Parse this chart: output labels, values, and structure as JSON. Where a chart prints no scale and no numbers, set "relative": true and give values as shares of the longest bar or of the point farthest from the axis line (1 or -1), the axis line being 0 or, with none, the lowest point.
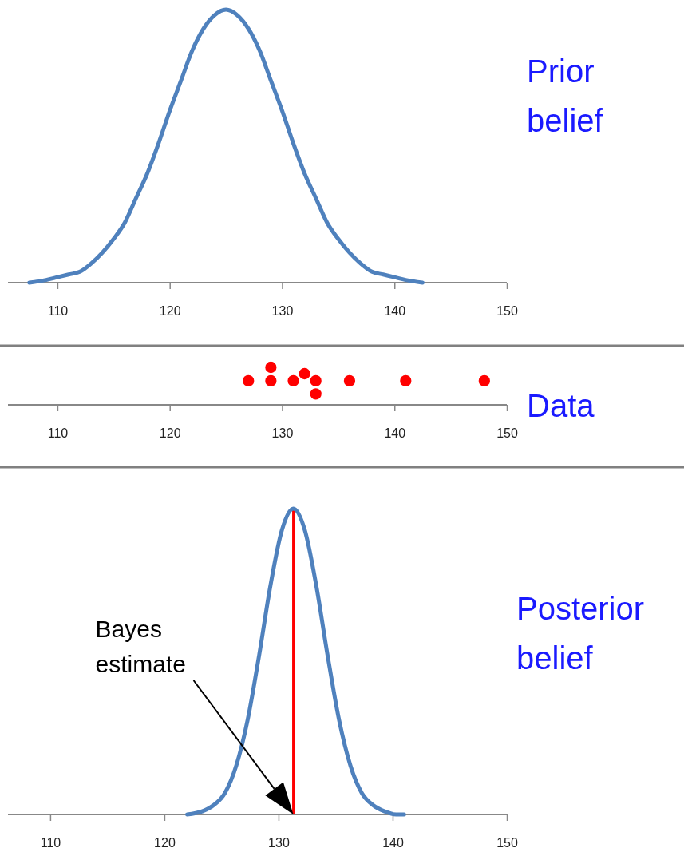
{
  "chart_data": [
    {
      "type": "line",
      "title": "Prior belief",
      "relative": true,
      "xlim": [
        105.6,
        150
      ],
      "xticks": [
        110,
        120,
        130,
        140,
        150
      ],
      "x": [
        107.5,
        109,
        110,
        111,
        112,
        113,
        114,
        115,
        116,
        117,
        118,
        119,
        120,
        121,
        122,
        123,
        124,
        125,
        126,
        127,
        128,
        129,
        130,
        131,
        132,
        133,
        134,
        135,
        136,
        137,
        138,
        139,
        140,
        141,
        142.5
      ],
      "series": [
        {
          "color": "#4f81bd",
          "values": [
            0.0,
            0.01,
            0.02,
            0.03,
            0.04,
            0.07,
            0.11,
            0.16,
            0.22,
            0.31,
            0.4,
            0.51,
            0.63,
            0.74,
            0.85,
            0.93,
            0.98,
            1,
            0.98,
            0.93,
            0.85,
            0.74,
            0.63,
            0.51,
            0.4,
            0.31,
            0.22,
            0.16,
            0.11,
            0.07,
            0.04,
            0.03,
            0.02,
            0.01,
            0.0
          ]
        }
      ]
    },
    {
      "type": "scatter",
      "title": "Data",
      "relative": true,
      "xlim": [
        105.6,
        150
      ],
      "xticks": [
        110,
        120,
        130,
        140,
        150
      ],
      "marker": "circle",
      "x": [
        127,
        129,
        129,
        131,
        132,
        133,
        133,
        136,
        141,
        148
      ],
      "series": [
        {
          "color": "#ff0000",
          "values": [
            0.64,
            0.64,
            1,
            0.64,
            0.83,
            0.64,
            0.29,
            0.64,
            0.64,
            0.64
          ]
        }
      ]
    },
    {
      "type": "line",
      "title": "Posterior belief",
      "relative": true,
      "xlim": [
        106.3,
        150
      ],
      "xticks": [
        110,
        120,
        130,
        140,
        150
      ],
      "x": [
        122,
        123.3,
        124.3,
        125.3,
        126.3,
        127.3,
        128.3,
        129.3,
        130.3,
        131.3,
        132.3,
        133.3,
        134.3,
        135.3,
        136.3,
        137.3,
        138.3,
        139.3,
        140.3,
        141
      ],
      "series": [
        {
          "color": "#4f81bd",
          "values": [
            0.0,
            0.01,
            0.03,
            0.07,
            0.16,
            0.31,
            0.52,
            0.75,
            0.93,
            1,
            0.93,
            0.75,
            0.52,
            0.31,
            0.16,
            0.07,
            0.03,
            0.01,
            0.0,
            0.0
          ]
        }
      ],
      "ref_lines": [
        {
          "axis": "x",
          "value": 131.3,
          "color": "#ff0000"
        }
      ],
      "annotations": [
        "Bayes estimate"
      ]
    }
  ]
}
